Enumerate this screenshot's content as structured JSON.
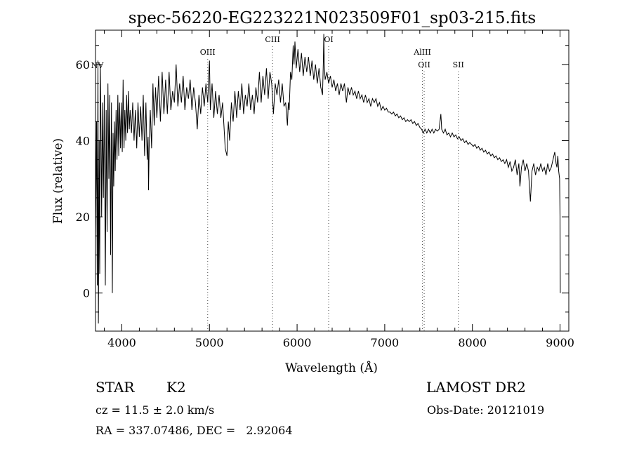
{
  "chart_data": {
    "type": "line",
    "title": "spec-56220-EG223221N023509F01_sp03-215.fits",
    "xlabel": "Wavelength (Å)",
    "ylabel": "Flux (relative)",
    "xlim": [
      3700,
      9100
    ],
    "ylim": [
      -10,
      69
    ],
    "x_ticks": [
      4000,
      5000,
      6000,
      7000,
      8000,
      9000
    ],
    "y_ticks": [
      0,
      20,
      40,
      60
    ],
    "grid": false,
    "legend": "none",
    "series": [
      {
        "values": [
          [
            3700,
            14
          ],
          [
            3712,
            45
          ],
          [
            3720,
            2
          ],
          [
            3728,
            61
          ],
          [
            3733,
            -8
          ],
          [
            3738,
            12
          ],
          [
            3742,
            40
          ],
          [
            3748,
            5
          ],
          [
            3755,
            60
          ],
          [
            3760,
            50
          ],
          [
            3770,
            20
          ],
          [
            3780,
            50
          ],
          [
            3790,
            25
          ],
          [
            3800,
            52
          ],
          [
            3812,
            2
          ],
          [
            3822,
            48
          ],
          [
            3832,
            16
          ],
          [
            3842,
            55
          ],
          [
            3852,
            30
          ],
          [
            3862,
            52
          ],
          [
            3872,
            10
          ],
          [
            3882,
            50
          ],
          [
            3892,
            0
          ],
          [
            3900,
            42
          ],
          [
            3908,
            28
          ],
          [
            3915,
            45
          ],
          [
            3925,
            32
          ],
          [
            3935,
            48
          ],
          [
            3945,
            35
          ],
          [
            3955,
            52
          ],
          [
            3965,
            36
          ],
          [
            3975,
            50
          ],
          [
            3985,
            38
          ],
          [
            3995,
            50
          ],
          [
            4005,
            37
          ],
          [
            4015,
            56
          ],
          [
            4025,
            38
          ],
          [
            4035,
            48
          ],
          [
            4045,
            40
          ],
          [
            4055,
            52
          ],
          [
            4065,
            42
          ],
          [
            4075,
            53
          ],
          [
            4085,
            43
          ],
          [
            4095,
            48
          ],
          [
            4110,
            42
          ],
          [
            4125,
            50
          ],
          [
            4140,
            40
          ],
          [
            4155,
            48
          ],
          [
            4170,
            38
          ],
          [
            4185,
            50
          ],
          [
            4200,
            41
          ],
          [
            4215,
            49
          ],
          [
            4230,
            40
          ],
          [
            4245,
            52
          ],
          [
            4260,
            36
          ],
          [
            4275,
            50
          ],
          [
            4290,
            35
          ],
          [
            4300,
            41
          ],
          [
            4305,
            27
          ],
          [
            4312,
            38
          ],
          [
            4325,
            48
          ],
          [
            4340,
            38
          ],
          [
            4355,
            55
          ],
          [
            4370,
            44
          ],
          [
            4385,
            54
          ],
          [
            4400,
            46
          ],
          [
            4420,
            57
          ],
          [
            4440,
            45
          ],
          [
            4460,
            58
          ],
          [
            4480,
            47
          ],
          [
            4500,
            56
          ],
          [
            4520,
            47
          ],
          [
            4540,
            58
          ],
          [
            4560,
            48
          ],
          [
            4580,
            53
          ],
          [
            4600,
            50
          ],
          [
            4620,
            60
          ],
          [
            4640,
            49
          ],
          [
            4660,
            55
          ],
          [
            4680,
            50
          ],
          [
            4700,
            57
          ],
          [
            4720,
            48
          ],
          [
            4740,
            54
          ],
          [
            4760,
            51
          ],
          [
            4780,
            56
          ],
          [
            4800,
            48
          ],
          [
            4820,
            54
          ],
          [
            4840,
            50
          ],
          [
            4861,
            43
          ],
          [
            4880,
            52
          ],
          [
            4900,
            47
          ],
          [
            4920,
            54
          ],
          [
            4940,
            49
          ],
          [
            4960,
            55
          ],
          [
            4980,
            50
          ],
          [
            5000,
            61
          ],
          [
            5010,
            48
          ],
          [
            5030,
            55
          ],
          [
            5050,
            46
          ],
          [
            5070,
            53
          ],
          [
            5090,
            47
          ],
          [
            5110,
            52
          ],
          [
            5130,
            46
          ],
          [
            5150,
            50
          ],
          [
            5170,
            42
          ],
          [
            5180,
            38
          ],
          [
            5200,
            36
          ],
          [
            5215,
            45
          ],
          [
            5230,
            40
          ],
          [
            5250,
            50
          ],
          [
            5270,
            45
          ],
          [
            5290,
            53
          ],
          [
            5310,
            46
          ],
          [
            5330,
            53
          ],
          [
            5350,
            48
          ],
          [
            5370,
            55
          ],
          [
            5390,
            47
          ],
          [
            5410,
            52
          ],
          [
            5430,
            49
          ],
          [
            5450,
            55
          ],
          [
            5470,
            48
          ],
          [
            5490,
            52
          ],
          [
            5510,
            47
          ],
          [
            5530,
            54
          ],
          [
            5550,
            50
          ],
          [
            5570,
            58
          ],
          [
            5590,
            50
          ],
          [
            5610,
            57
          ],
          [
            5630,
            52
          ],
          [
            5650,
            59
          ],
          [
            5670,
            51
          ],
          [
            5690,
            58
          ],
          [
            5710,
            55
          ],
          [
            5730,
            47
          ],
          [
            5750,
            55
          ],
          [
            5770,
            52
          ],
          [
            5790,
            56
          ],
          [
            5810,
            50
          ],
          [
            5830,
            55
          ],
          [
            5850,
            49
          ],
          [
            5870,
            50
          ],
          [
            5890,
            44
          ],
          [
            5900,
            50
          ],
          [
            5910,
            48
          ],
          [
            5925,
            58
          ],
          [
            5940,
            56
          ],
          [
            5955,
            65
          ],
          [
            5965,
            60
          ],
          [
            5975,
            66
          ],
          [
            5990,
            59
          ],
          [
            6010,
            64
          ],
          [
            6030,
            58
          ],
          [
            6050,
            63
          ],
          [
            6070,
            57
          ],
          [
            6090,
            62
          ],
          [
            6110,
            58
          ],
          [
            6130,
            62
          ],
          [
            6150,
            57
          ],
          [
            6170,
            61
          ],
          [
            6190,
            56
          ],
          [
            6210,
            60
          ],
          [
            6230,
            55
          ],
          [
            6250,
            59
          ],
          [
            6270,
            54
          ],
          [
            6290,
            52
          ],
          [
            6300,
            61
          ],
          [
            6305,
            68
          ],
          [
            6310,
            60
          ],
          [
            6320,
            56
          ],
          [
            6340,
            58
          ],
          [
            6360,
            55
          ],
          [
            6380,
            57
          ],
          [
            6400,
            54
          ],
          [
            6420,
            56
          ],
          [
            6440,
            53
          ],
          [
            6460,
            55
          ],
          [
            6480,
            52
          ],
          [
            6500,
            55
          ],
          [
            6520,
            53
          ],
          [
            6540,
            55
          ],
          [
            6563,
            50
          ],
          [
            6580,
            54
          ],
          [
            6600,
            52
          ],
          [
            6620,
            54
          ],
          [
            6640,
            52
          ],
          [
            6660,
            53
          ],
          [
            6680,
            51
          ],
          [
            6700,
            53
          ],
          [
            6720,
            51
          ],
          [
            6740,
            52
          ],
          [
            6760,
            50
          ],
          [
            6780,
            52
          ],
          [
            6800,
            50
          ],
          [
            6820,
            51
          ],
          [
            6840,
            49
          ],
          [
            6860,
            51
          ],
          [
            6880,
            50
          ],
          [
            6900,
            51
          ],
          [
            6920,
            49
          ],
          [
            6940,
            50
          ],
          [
            6960,
            48
          ],
          [
            6980,
            49
          ],
          [
            7000,
            48
          ],
          [
            7020,
            48.5
          ],
          [
            7040,
            47.5
          ],
          [
            7060,
            47.5
          ],
          [
            7080,
            47
          ],
          [
            7100,
            47.5
          ],
          [
            7120,
            46.5
          ],
          [
            7140,
            47
          ],
          [
            7160,
            46
          ],
          [
            7180,
            46.5
          ],
          [
            7200,
            45.5
          ],
          [
            7220,
            46
          ],
          [
            7240,
            45
          ],
          [
            7260,
            45.5
          ],
          [
            7280,
            45
          ],
          [
            7300,
            45.5
          ],
          [
            7320,
            44.5
          ],
          [
            7340,
            45
          ],
          [
            7360,
            44
          ],
          [
            7380,
            44.5
          ],
          [
            7400,
            43.5
          ],
          [
            7420,
            43
          ],
          [
            7440,
            42
          ],
          [
            7460,
            43
          ],
          [
            7480,
            42
          ],
          [
            7500,
            43
          ],
          [
            7520,
            42
          ],
          [
            7540,
            43
          ],
          [
            7560,
            42
          ],
          [
            7580,
            43
          ],
          [
            7600,
            42.5
          ],
          [
            7620,
            43
          ],
          [
            7640,
            47
          ],
          [
            7650,
            43
          ],
          [
            7670,
            42
          ],
          [
            7690,
            43
          ],
          [
            7710,
            41.5
          ],
          [
            7730,
            42
          ],
          [
            7750,
            41
          ],
          [
            7770,
            42
          ],
          [
            7790,
            41
          ],
          [
            7810,
            41.5
          ],
          [
            7830,
            40.5
          ],
          [
            7850,
            41
          ],
          [
            7870,
            40
          ],
          [
            7890,
            40.5
          ],
          [
            7910,
            39.5
          ],
          [
            7930,
            40
          ],
          [
            7950,
            39
          ],
          [
            7970,
            39.5
          ],
          [
            7990,
            39
          ],
          [
            8010,
            38.5
          ],
          [
            8030,
            39
          ],
          [
            8050,
            38
          ],
          [
            8070,
            38.5
          ],
          [
            8090,
            37.5
          ],
          [
            8110,
            38
          ],
          [
            8130,
            37
          ],
          [
            8150,
            37.5
          ],
          [
            8170,
            36.5
          ],
          [
            8190,
            37
          ],
          [
            8210,
            36
          ],
          [
            8230,
            36.5
          ],
          [
            8250,
            35.5
          ],
          [
            8270,
            36
          ],
          [
            8290,
            35
          ],
          [
            8310,
            35.5
          ],
          [
            8330,
            34.5
          ],
          [
            8350,
            35
          ],
          [
            8370,
            34
          ],
          [
            8390,
            35
          ],
          [
            8410,
            33
          ],
          [
            8430,
            34.5
          ],
          [
            8450,
            32
          ],
          [
            8470,
            33
          ],
          [
            8490,
            35
          ],
          [
            8510,
            31
          ],
          [
            8530,
            34
          ],
          [
            8542,
            28
          ],
          [
            8560,
            33
          ],
          [
            8580,
            35
          ],
          [
            8600,
            32
          ],
          [
            8620,
            34
          ],
          [
            8640,
            32
          ],
          [
            8662,
            24
          ],
          [
            8680,
            32
          ],
          [
            8700,
            34
          ],
          [
            8720,
            31
          ],
          [
            8740,
            33
          ],
          [
            8760,
            32
          ],
          [
            8780,
            34
          ],
          [
            8800,
            32
          ],
          [
            8820,
            33
          ],
          [
            8840,
            31
          ],
          [
            8860,
            34
          ],
          [
            8880,
            32
          ],
          [
            8900,
            33
          ],
          [
            8920,
            35
          ],
          [
            8940,
            37
          ],
          [
            8955,
            34
          ],
          [
            8965,
            33
          ],
          [
            8975,
            36
          ],
          [
            8985,
            32
          ],
          [
            8995,
            30
          ],
          [
            9000,
            20
          ],
          [
            9003,
            0
          ]
        ]
      }
    ],
    "line_markers": [
      {
        "name": "NV",
        "x": 3720
      },
      {
        "name": "OIII",
        "x": 4980
      },
      {
        "name": "CIII",
        "x": 5720
      },
      {
        "name": "OI",
        "x": 6360
      },
      {
        "name": "AlIII",
        "x": 7430
      },
      {
        "name": "OII",
        "x": 7450
      },
      {
        "name": "SII",
        "x": 7840
      }
    ]
  },
  "info": {
    "object_class": "STAR",
    "subclass": "K2",
    "survey": "LAMOST DR2",
    "redshift": "cz = 11.5 ± 2.0 km/s",
    "obs_date": "Obs-Date: 20121019",
    "coords": "RA = 337.07486, DEC =   2.92064"
  }
}
